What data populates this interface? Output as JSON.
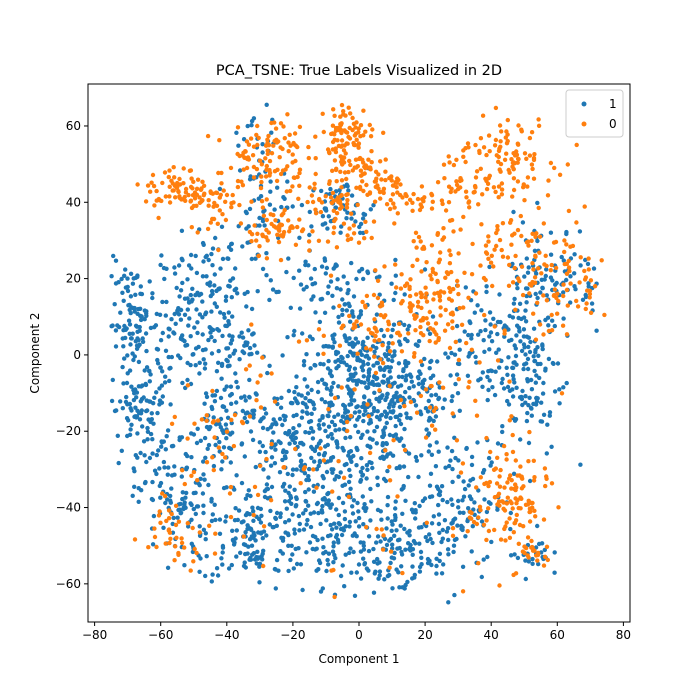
{
  "chart_data": {
    "type": "scatter",
    "title": "PCA_TSNE: True Labels Visualized in 2D",
    "xlabel": "Component 1",
    "ylabel": "Component 2",
    "xlim": [
      -82,
      82
    ],
    "ylim": [
      -70,
      71
    ],
    "xticks": [
      -80,
      -60,
      -40,
      -20,
      0,
      20,
      40,
      60,
      80
    ],
    "yticks": [
      -60,
      -40,
      -20,
      0,
      20,
      40,
      60
    ],
    "grid": false,
    "legend_position": "top-right",
    "series": [
      {
        "name": "1",
        "color": "#1f77b4",
        "clusters": [
          {
            "center": [
              -1,
              -5
            ],
            "spread": [
              9,
              9
            ],
            "n": 260
          },
          {
            "center": [
              12,
              -12
            ],
            "spread": [
              10,
              8
            ],
            "n": 200
          },
          {
            "center": [
              -20,
              -25
            ],
            "spread": [
              9,
              9
            ],
            "n": 180
          },
          {
            "center": [
              -33,
              -48
            ],
            "spread": [
              8,
              6
            ],
            "n": 120
          },
          {
            "center": [
              -55,
              -38
            ],
            "spread": [
              6,
              8
            ],
            "n": 120
          },
          {
            "center": [
              -65,
              -15
            ],
            "spread": [
              5,
              7
            ],
            "n": 100
          },
          {
            "center": [
              -68,
              8
            ],
            "spread": [
              4,
              8
            ],
            "n": 110
          },
          {
            "center": [
              -52,
              8
            ],
            "spread": [
              6,
              7
            ],
            "n": 90
          },
          {
            "center": [
              -40,
              -18
            ],
            "spread": [
              6,
              7
            ],
            "n": 90
          },
          {
            "center": [
              -8,
              -45
            ],
            "spread": [
              10,
              8
            ],
            "n": 160
          },
          {
            "center": [
              12,
              -52
            ],
            "spread": [
              9,
              6
            ],
            "n": 130
          },
          {
            "center": [
              28,
              -38
            ],
            "spread": [
              8,
              8
            ],
            "n": 110
          },
          {
            "center": [
              50,
              -5
            ],
            "spread": [
              6,
              11
            ],
            "n": 150
          },
          {
            "center": [
              58,
              20
            ],
            "spread": [
              8,
              8
            ],
            "n": 110
          },
          {
            "center": [
              35,
              5
            ],
            "spread": [
              6,
              7
            ],
            "n": 60
          },
          {
            "center": [
              -5,
              38
            ],
            "spread": [
              5,
              4
            ],
            "n": 60
          },
          {
            "center": [
              -30,
              45
            ],
            "spread": [
              4,
              10
            ],
            "n": 60
          },
          {
            "center": [
              -40,
              2
            ],
            "spread": [
              6,
              5
            ],
            "n": 60
          },
          {
            "center": [
              -10,
              18
            ],
            "spread": [
              12,
              6
            ],
            "n": 90
          },
          {
            "center": [
              -45,
              22
            ],
            "spread": [
              8,
              6
            ],
            "n": 70
          },
          {
            "center": [
              52,
              -52
            ],
            "spread": [
              3,
              3
            ],
            "n": 25
          },
          {
            "center": [
              0,
              -25
            ],
            "spread": [
              8,
              6
            ],
            "n": 80
          }
        ]
      },
      {
        "name": "0",
        "color": "#ff7f0e",
        "clusters": [
          {
            "center": [
              -3,
              59
            ],
            "spread": [
              4,
              3
            ],
            "n": 70
          },
          {
            "center": [
              -28,
              52
            ],
            "spread": [
              6,
              6
            ],
            "n": 110
          },
          {
            "center": [
              -55,
              43
            ],
            "spread": [
              5,
              3
            ],
            "n": 60
          },
          {
            "center": [
              -45,
              40
            ],
            "spread": [
              4,
              4
            ],
            "n": 50
          },
          {
            "center": [
              18,
              40
            ],
            "spread": [
              3,
              2
            ],
            "n": 20
          },
          {
            "center": [
              -25,
              33
            ],
            "spread": [
              4,
              3
            ],
            "n": 50
          },
          {
            "center": [
              -5,
              38
            ],
            "spread": [
              6,
              6
            ],
            "n": 80
          },
          {
            "center": [
              8,
              43
            ],
            "spread": [
              4,
              3
            ],
            "n": 40
          },
          {
            "center": [
              -1,
              50
            ],
            "spread": [
              4,
              3
            ],
            "n": 40
          },
          {
            "center": [
              45,
              52
            ],
            "spread": [
              7,
              5
            ],
            "n": 90
          },
          {
            "center": [
              33,
              45
            ],
            "spread": [
              5,
              5
            ],
            "n": 50
          },
          {
            "center": [
              22,
              15
            ],
            "spread": [
              7,
              10
            ],
            "n": 140
          },
          {
            "center": [
              60,
              20
            ],
            "spread": [
              8,
              8
            ],
            "n": 100
          },
          {
            "center": [
              45,
              -38
            ],
            "spread": [
              6,
              8
            ],
            "n": 120
          },
          {
            "center": [
              52,
              -52
            ],
            "spread": [
              3,
              3
            ],
            "n": 20
          },
          {
            "center": [
              10,
              -20
            ],
            "spread": [
              20,
              20
            ],
            "n": 110
          },
          {
            "center": [
              -40,
              -25
            ],
            "spread": [
              10,
              10
            ],
            "n": 50
          },
          {
            "center": [
              -55,
              -45
            ],
            "spread": [
              5,
              5
            ],
            "n": 40
          },
          {
            "center": [
              5,
              8
            ],
            "spread": [
              5,
              4
            ],
            "n": 40
          },
          {
            "center": [
              45,
              29
            ],
            "spread": [
              5,
              4
            ],
            "n": 30
          }
        ]
      }
    ]
  }
}
